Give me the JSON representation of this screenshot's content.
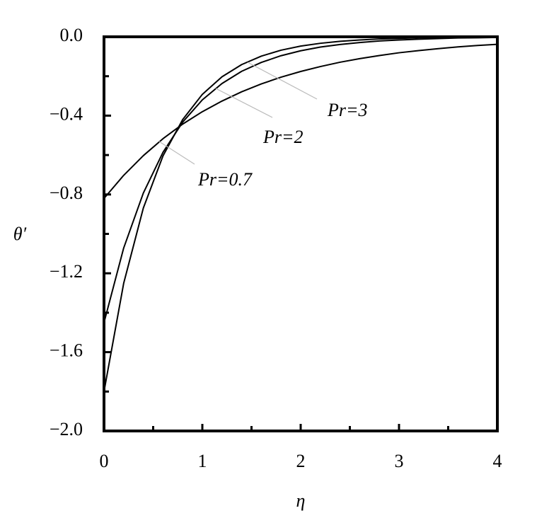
{
  "chart_data": {
    "type": "line",
    "x_label": "η",
    "y_label": "θ′",
    "x": [
      0,
      0.2,
      0.4,
      0.6,
      0.8,
      1.0,
      1.2,
      1.4,
      1.6,
      1.8,
      2.0,
      2.2,
      2.4,
      2.6,
      2.8,
      3.0,
      3.2,
      3.4,
      3.6,
      3.8,
      4.0
    ],
    "series": [
      {
        "name": "Pr=0.7",
        "color": "#000000",
        "values": [
          -0.82,
          -0.703,
          -0.603,
          -0.517,
          -0.443,
          -0.38,
          -0.326,
          -0.279,
          -0.239,
          -0.205,
          -0.176,
          -0.151,
          -0.129,
          -0.111,
          -0.095,
          -0.081,
          -0.07,
          -0.06,
          -0.051,
          -0.044,
          -0.038
        ]
      },
      {
        "name": "Pr=2",
        "color": "#000000",
        "values": [
          -1.45,
          -1.072,
          -0.793,
          -0.586,
          -0.433,
          -0.32,
          -0.237,
          -0.175,
          -0.13,
          -0.096,
          -0.071,
          -0.052,
          -0.039,
          -0.029,
          -0.021,
          -0.016,
          -0.012,
          -0.009,
          -0.006,
          -0.005,
          -0.003
        ]
      },
      {
        "name": "Pr=3",
        "color": "#000000",
        "values": [
          -1.8,
          -1.251,
          -0.869,
          -0.604,
          -0.42,
          -0.292,
          -0.203,
          -0.141,
          -0.098,
          -0.068,
          -0.047,
          -0.033,
          -0.023,
          -0.016,
          -0.011,
          -0.008,
          -0.005,
          -0.004,
          -0.002,
          -0.002,
          -0.001
        ]
      }
    ],
    "xlim": [
      0,
      4
    ],
    "xticks": [
      0,
      1,
      2,
      3,
      4
    ],
    "xminorticks": [
      0.5,
      1.5,
      2.5,
      3.5
    ],
    "ylim": [
      -2.0,
      0.0
    ],
    "yticks": [
      {
        "value": -2.0,
        "label": "−2.0"
      },
      {
        "value": -1.6,
        "label": "−1.6"
      },
      {
        "value": -1.2,
        "label": "−1.2"
      },
      {
        "value": -0.8,
        "label": "−0.8"
      },
      {
        "value": -0.4,
        "label": "−0.4"
      },
      {
        "value": 0.0,
        "label": "0.0"
      }
    ],
    "yminorticks": [
      -1.8,
      -1.4,
      -1.0,
      -0.6,
      -0.2
    ],
    "grid": false
  }
}
